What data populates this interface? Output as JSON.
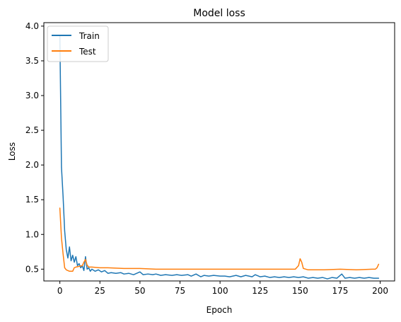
{
  "chart_data": {
    "type": "line",
    "title": "Model loss",
    "xlabel": "Epoch",
    "ylabel": "Loss",
    "xlim": [
      -10,
      209
    ],
    "ylim": [
      0.33,
      4.05
    ],
    "xticks": [
      0,
      25,
      50,
      75,
      100,
      125,
      150,
      175,
      200
    ],
    "yticks": [
      0.5,
      1.0,
      1.5,
      2.0,
      2.5,
      3.0,
      3.5,
      4.0
    ],
    "ytick_labels": [
      "0.5",
      "1.0",
      "1.5",
      "2.0",
      "2.5",
      "3.0",
      "3.5",
      "4.0"
    ],
    "grid": false,
    "legend_position": "upper-left",
    "series": [
      {
        "name": "Train",
        "color": "#1f77b4",
        "points": [
          [
            0,
            3.85
          ],
          [
            1,
            1.97
          ],
          [
            2,
            1.55
          ],
          [
            3,
            1.05
          ],
          [
            4,
            0.78
          ],
          [
            5,
            0.66
          ],
          [
            6,
            0.82
          ],
          [
            7,
            0.62
          ],
          [
            8,
            0.7
          ],
          [
            9,
            0.6
          ],
          [
            10,
            0.68
          ],
          [
            11,
            0.55
          ],
          [
            12,
            0.58
          ],
          [
            13,
            0.52
          ],
          [
            14,
            0.55
          ],
          [
            15,
            0.48
          ],
          [
            16,
            0.68
          ],
          [
            17,
            0.5
          ],
          [
            18,
            0.52
          ],
          [
            19,
            0.47
          ],
          [
            20,
            0.5
          ],
          [
            22,
            0.47
          ],
          [
            24,
            0.49
          ],
          [
            26,
            0.46
          ],
          [
            28,
            0.48
          ],
          [
            30,
            0.44
          ],
          [
            32,
            0.45
          ],
          [
            35,
            0.44
          ],
          [
            38,
            0.45
          ],
          [
            40,
            0.43
          ],
          [
            43,
            0.44
          ],
          [
            46,
            0.42
          ],
          [
            48,
            0.44
          ],
          [
            50,
            0.46
          ],
          [
            52,
            0.42
          ],
          [
            55,
            0.43
          ],
          [
            58,
            0.42
          ],
          [
            60,
            0.43
          ],
          [
            63,
            0.41
          ],
          [
            66,
            0.42
          ],
          [
            70,
            0.41
          ],
          [
            73,
            0.42
          ],
          [
            76,
            0.41
          ],
          [
            80,
            0.42
          ],
          [
            82,
            0.4
          ],
          [
            85,
            0.43
          ],
          [
            88,
            0.39
          ],
          [
            90,
            0.41
          ],
          [
            93,
            0.4
          ],
          [
            96,
            0.41
          ],
          [
            100,
            0.4
          ],
          [
            103,
            0.4
          ],
          [
            106,
            0.39
          ],
          [
            110,
            0.41
          ],
          [
            113,
            0.39
          ],
          [
            116,
            0.41
          ],
          [
            120,
            0.39
          ],
          [
            122,
            0.42
          ],
          [
            125,
            0.39
          ],
          [
            128,
            0.4
          ],
          [
            131,
            0.38
          ],
          [
            134,
            0.39
          ],
          [
            137,
            0.38
          ],
          [
            140,
            0.39
          ],
          [
            143,
            0.38
          ],
          [
            146,
            0.39
          ],
          [
            149,
            0.38
          ],
          [
            152,
            0.39
          ],
          [
            155,
            0.37
          ],
          [
            158,
            0.38
          ],
          [
            161,
            0.37
          ],
          [
            164,
            0.38
          ],
          [
            167,
            0.36
          ],
          [
            170,
            0.38
          ],
          [
            173,
            0.37
          ],
          [
            176,
            0.43
          ],
          [
            178,
            0.37
          ],
          [
            181,
            0.38
          ],
          [
            184,
            0.37
          ],
          [
            187,
            0.38
          ],
          [
            190,
            0.37
          ],
          [
            193,
            0.38
          ],
          [
            196,
            0.37
          ],
          [
            199,
            0.37
          ]
        ]
      },
      {
        "name": "Test",
        "color": "#ff7f0e",
        "points": [
          [
            0,
            1.38
          ],
          [
            1,
            0.95
          ],
          [
            2,
            0.72
          ],
          [
            3,
            0.52
          ],
          [
            4,
            0.49
          ],
          [
            5,
            0.48
          ],
          [
            6,
            0.47
          ],
          [
            7,
            0.47
          ],
          [
            8,
            0.47
          ],
          [
            9,
            0.52
          ],
          [
            10,
            0.53
          ],
          [
            12,
            0.54
          ],
          [
            14,
            0.55
          ],
          [
            15,
            0.6
          ],
          [
            16,
            0.64
          ],
          [
            17,
            0.56
          ],
          [
            18,
            0.53
          ],
          [
            20,
            0.53
          ],
          [
            25,
            0.52
          ],
          [
            30,
            0.52
          ],
          [
            40,
            0.51
          ],
          [
            50,
            0.51
          ],
          [
            60,
            0.5
          ],
          [
            70,
            0.5
          ],
          [
            80,
            0.5
          ],
          [
            90,
            0.5
          ],
          [
            100,
            0.5
          ],
          [
            110,
            0.5
          ],
          [
            120,
            0.5
          ],
          [
            130,
            0.5
          ],
          [
            140,
            0.5
          ],
          [
            147,
            0.5
          ],
          [
            149,
            0.55
          ],
          [
            150,
            0.65
          ],
          [
            151,
            0.6
          ],
          [
            152,
            0.51
          ],
          [
            155,
            0.49
          ],
          [
            165,
            0.49
          ],
          [
            175,
            0.5
          ],
          [
            185,
            0.49
          ],
          [
            195,
            0.5
          ],
          [
            197,
            0.5
          ],
          [
            198,
            0.52
          ],
          [
            199,
            0.57
          ]
        ]
      }
    ]
  }
}
